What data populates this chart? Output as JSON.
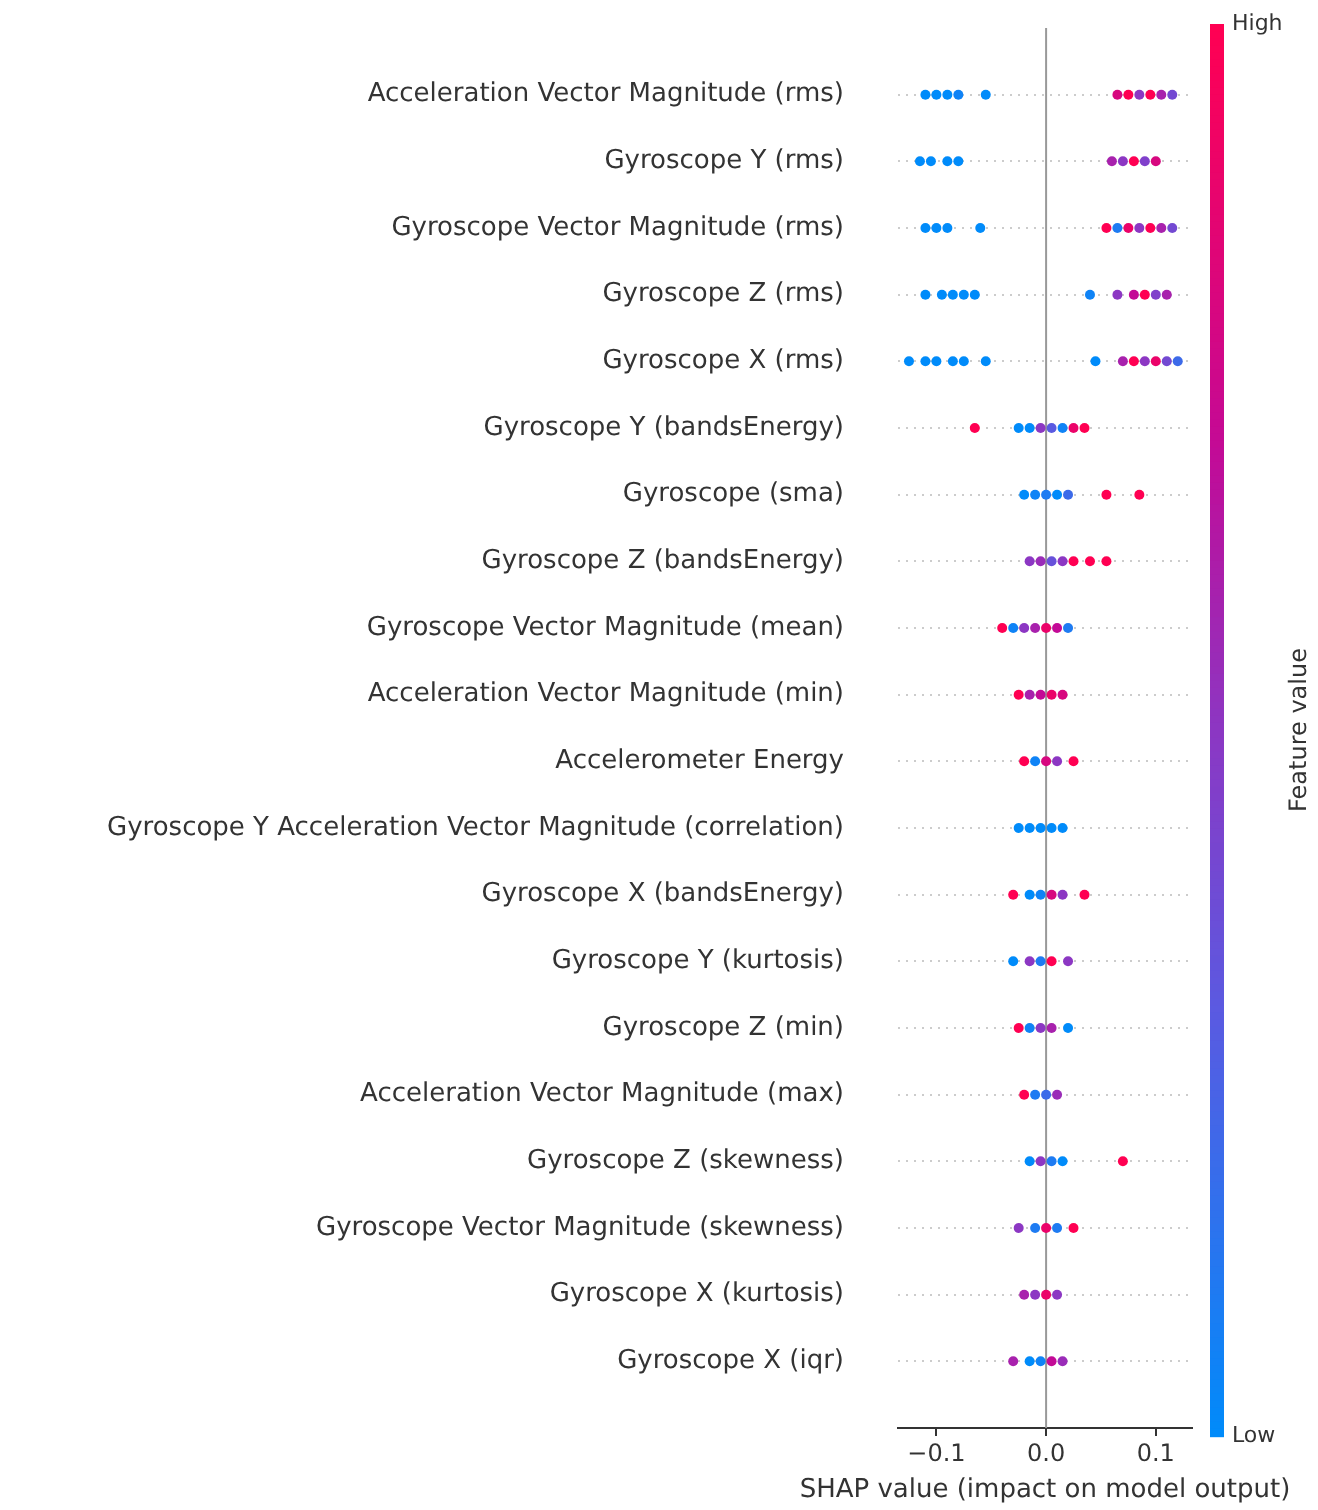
{
  "chart_data": {
    "type": "scatter",
    "orientation": "horizontal",
    "xlabel": "SHAP value (impact on model output)",
    "clabel": "Feature value",
    "categories": [
      "Acceleration Vector Magnitude (rms)",
      "Gyroscope Y (rms)",
      "Gyroscope Vector Magnitude (rms)",
      "Gyroscope Z (rms)",
      "Gyroscope X (rms)",
      "Gyroscope Y (bandsEnergy)",
      "Gyroscope (sma)",
      "Gyroscope Z (bandsEnergy)",
      "Gyroscope Vector Magnitude (mean)",
      "Acceleration Vector Magnitude (min)",
      "Accelerometer Energy",
      "Gyroscope Y Acceleration Vector Magnitude (correlation)",
      "Gyroscope X (bandsEnergy)",
      "Gyroscope Y (kurtosis)",
      "Gyroscope Z (min)",
      "Acceleration Vector Magnitude (max)",
      "Gyroscope Z (skewness)",
      "Gyroscope Vector Magnitude (skewness)",
      "Gyroscope X (kurtosis)",
      "Gyroscope X (iqr)"
    ],
    "xlim": [
      -0.135,
      0.133
    ],
    "xticks": [
      {
        "value": -0.1,
        "label": "−0.1"
      },
      {
        "value": 0,
        "label": "0.0"
      },
      {
        "value": 0.1,
        "label": "0.1"
      }
    ],
    "clim": [
      0,
      1
    ],
    "cticks": [
      {
        "value": 0,
        "label": "Low"
      },
      {
        "value": 1,
        "label": "High"
      }
    ],
    "grid": "y",
    "marker": "circle",
    "ref_lines": [
      {
        "axis": "x",
        "value": 0,
        "color": "#999999"
      }
    ],
    "series": [
      {
        "x": [
          "Acceleration Vector Magnitude (rms)",
          "Acceleration Vector Magnitude (rms)",
          "Acceleration Vector Magnitude (rms)",
          "Acceleration Vector Magnitude (rms)",
          "Acceleration Vector Magnitude (rms)",
          "Acceleration Vector Magnitude (rms)",
          "Acceleration Vector Magnitude (rms)",
          "Acceleration Vector Magnitude (rms)",
          "Acceleration Vector Magnitude (rms)",
          "Acceleration Vector Magnitude (rms)",
          "Acceleration Vector Magnitude (rms)",
          "Gyroscope Y (rms)",
          "Gyroscope Y (rms)",
          "Gyroscope Y (rms)",
          "Gyroscope Y (rms)",
          "Gyroscope Y (rms)",
          "Gyroscope Y (rms)",
          "Gyroscope Y (rms)",
          "Gyroscope Y (rms)",
          "Gyroscope Y (rms)",
          "Gyroscope Vector Magnitude (rms)",
          "Gyroscope Vector Magnitude (rms)",
          "Gyroscope Vector Magnitude (rms)",
          "Gyroscope Vector Magnitude (rms)",
          "Gyroscope Vector Magnitude (rms)",
          "Gyroscope Vector Magnitude (rms)",
          "Gyroscope Vector Magnitude (rms)",
          "Gyroscope Vector Magnitude (rms)",
          "Gyroscope Vector Magnitude (rms)",
          "Gyroscope Vector Magnitude (rms)",
          "Gyroscope Vector Magnitude (rms)",
          "Gyroscope Z (rms)",
          "Gyroscope Z (rms)",
          "Gyroscope Z (rms)",
          "Gyroscope Z (rms)",
          "Gyroscope Z (rms)",
          "Gyroscope Z (rms)",
          "Gyroscope Z (rms)",
          "Gyroscope Z (rms)",
          "Gyroscope Z (rms)",
          "Gyroscope Z (rms)",
          "Gyroscope Z (rms)",
          "Gyroscope X (rms)",
          "Gyroscope X (rms)",
          "Gyroscope X (rms)",
          "Gyroscope X (rms)",
          "Gyroscope X (rms)",
          "Gyroscope X (rms)",
          "Gyroscope X (rms)",
          "Gyroscope X (rms)",
          "Gyroscope X (rms)",
          "Gyroscope X (rms)",
          "Gyroscope X (rms)",
          "Gyroscope X (rms)",
          "Gyroscope X (rms)",
          "Gyroscope Y (bandsEnergy)",
          "Gyroscope Y (bandsEnergy)",
          "Gyroscope Y (bandsEnergy)",
          "Gyroscope Y (bandsEnergy)",
          "Gyroscope Y (bandsEnergy)",
          "Gyroscope Y (bandsEnergy)",
          "Gyroscope Y (bandsEnergy)",
          "Gyroscope Y (bandsEnergy)",
          "Gyroscope (sma)",
          "Gyroscope (sma)",
          "Gyroscope (sma)",
          "Gyroscope (sma)",
          "Gyroscope (sma)",
          "Gyroscope (sma)",
          "Gyroscope (sma)",
          "Gyroscope Z (bandsEnergy)",
          "Gyroscope Z (bandsEnergy)",
          "Gyroscope Z (bandsEnergy)",
          "Gyroscope Z (bandsEnergy)",
          "Gyroscope Z (bandsEnergy)",
          "Gyroscope Z (bandsEnergy)",
          "Gyroscope Z (bandsEnergy)",
          "Gyroscope Vector Magnitude (mean)",
          "Gyroscope Vector Magnitude (mean)",
          "Gyroscope Vector Magnitude (mean)",
          "Gyroscope Vector Magnitude (mean)",
          "Gyroscope Vector Magnitude (mean)",
          "Gyroscope Vector Magnitude (mean)",
          "Gyroscope Vector Magnitude (mean)",
          "Acceleration Vector Magnitude (min)",
          "Acceleration Vector Magnitude (min)",
          "Acceleration Vector Magnitude (min)",
          "Acceleration Vector Magnitude (min)",
          "Acceleration Vector Magnitude (min)",
          "Accelerometer Energy",
          "Accelerometer Energy",
          "Accelerometer Energy",
          "Accelerometer Energy",
          "Accelerometer Energy",
          "Gyroscope Y Acceleration Vector Magnitude (correlation)",
          "Gyroscope Y Acceleration Vector Magnitude (correlation)",
          "Gyroscope Y Acceleration Vector Magnitude (correlation)",
          "Gyroscope Y Acceleration Vector Magnitude (correlation)",
          "Gyroscope Y Acceleration Vector Magnitude (correlation)",
          "Gyroscope X (bandsEnergy)",
          "Gyroscope X (bandsEnergy)",
          "Gyroscope X (bandsEnergy)",
          "Gyroscope X (bandsEnergy)",
          "Gyroscope X (bandsEnergy)",
          "Gyroscope X (bandsEnergy)",
          "Gyroscope Y (kurtosis)",
          "Gyroscope Y (kurtosis)",
          "Gyroscope Y (kurtosis)",
          "Gyroscope Y (kurtosis)",
          "Gyroscope Y (kurtosis)",
          "Gyroscope Z (min)",
          "Gyroscope Z (min)",
          "Gyroscope Z (min)",
          "Gyroscope Z (min)",
          "Gyroscope Z (min)",
          "Acceleration Vector Magnitude (max)",
          "Acceleration Vector Magnitude (max)",
          "Acceleration Vector Magnitude (max)",
          "Acceleration Vector Magnitude (max)",
          "Gyroscope Z (skewness)",
          "Gyroscope Z (skewness)",
          "Gyroscope Z (skewness)",
          "Gyroscope Z (skewness)",
          "Gyroscope Z (skewness)",
          "Gyroscope Vector Magnitude (skewness)",
          "Gyroscope Vector Magnitude (skewness)",
          "Gyroscope Vector Magnitude (skewness)",
          "Gyroscope Vector Magnitude (skewness)",
          "Gyroscope Vector Magnitude (skewness)",
          "Gyroscope X (kurtosis)",
          "Gyroscope X (kurtosis)",
          "Gyroscope X (kurtosis)",
          "Gyroscope X (kurtosis)",
          "Gyroscope X (iqr)",
          "Gyroscope X (iqr)",
          "Gyroscope X (iqr)",
          "Gyroscope X (iqr)",
          "Gyroscope X (iqr)"
        ],
        "values": [
          -0.11,
          -0.1,
          -0.09,
          -0.08,
          -0.055,
          0.065,
          0.075,
          0.085,
          0.095,
          0.105,
          0.115,
          -0.115,
          -0.105,
          -0.09,
          -0.08,
          0.06,
          0.07,
          0.08,
          0.09,
          0.1,
          -0.11,
          -0.1,
          -0.09,
          -0.06,
          0.055,
          0.065,
          0.075,
          0.085,
          0.095,
          0.105,
          0.115,
          -0.11,
          -0.095,
          -0.085,
          -0.075,
          -0.065,
          0.04,
          0.065,
          0.08,
          0.09,
          0.1,
          0.11,
          -0.125,
          -0.11,
          -0.1,
          -0.085,
          -0.075,
          -0.055,
          0.045,
          0.07,
          0.08,
          0.09,
          0.1,
          0.11,
          0.12,
          -0.065,
          -0.025,
          -0.015,
          -0.005,
          0.005,
          0.015,
          0.025,
          0.035,
          -0.02,
          -0.01,
          0,
          0.01,
          0.02,
          0.055,
          0.085,
          -0.015,
          -0.005,
          0.005,
          0.015,
          0.025,
          0.04,
          0.055,
          -0.04,
          -0.03,
          -0.02,
          -0.01,
          0,
          0.01,
          0.02,
          -0.025,
          -0.015,
          -0.005,
          0.005,
          0.015,
          -0.02,
          -0.01,
          0,
          0.01,
          0.025,
          -0.025,
          -0.015,
          -0.005,
          0.005,
          0.015,
          -0.03,
          -0.015,
          -0.005,
          0.005,
          0.015,
          0.035,
          -0.03,
          -0.015,
          -0.005,
          0.005,
          0.02,
          -0.025,
          -0.015,
          -0.005,
          0.005,
          0.02,
          -0.02,
          -0.01,
          0,
          0.01,
          -0.015,
          -0.005,
          0.005,
          0.015,
          0.07,
          -0.025,
          -0.01,
          0,
          0.01,
          0.025,
          -0.02,
          -0.01,
          0,
          0.01,
          -0.03,
          -0.015,
          -0.005,
          0.005,
          0.015
        ],
        "cvalues": [
          0,
          0,
          0,
          0.05,
          0,
          0.8,
          1,
          0.5,
          1,
          0.6,
          0.4,
          0,
          0,
          0,
          0,
          0.6,
          0.5,
          1,
          0.45,
          0.8,
          0,
          0,
          0,
          0,
          1,
          0.1,
          0.9,
          0.5,
          1,
          0.6,
          0.4,
          0,
          0,
          0,
          0,
          0,
          0.05,
          0.5,
          0.7,
          1,
          0.45,
          0.6,
          0,
          0,
          0,
          0,
          0,
          0,
          0,
          0.6,
          1,
          0.5,
          0.9,
          0.4,
          0.2,
          1,
          0,
          0,
          0.5,
          0.3,
          0.05,
          0.9,
          1,
          0,
          0.05,
          0.1,
          0,
          0.2,
          1,
          1,
          0.5,
          0.55,
          0.35,
          0.5,
          1,
          1,
          1,
          1,
          0.05,
          0.5,
          0.6,
          0.9,
          0.7,
          0.1,
          1,
          0.6,
          0.7,
          0.9,
          0.8,
          1,
          0.05,
          0.8,
          0.5,
          1,
          0,
          0,
          0,
          0,
          0,
          1,
          0,
          0.05,
          0.8,
          0.5,
          1,
          0,
          0.5,
          0.1,
          1,
          0.5,
          1,
          0.05,
          0.5,
          0.6,
          0,
          1,
          0.1,
          0.2,
          0.55,
          0,
          0.5,
          0.1,
          0,
          1,
          0.5,
          0.1,
          0.9,
          0.1,
          1,
          0.6,
          0.5,
          0.9,
          0.5,
          0.6,
          0,
          0.05,
          0.7,
          0.55
        ]
      }
    ]
  }
}
